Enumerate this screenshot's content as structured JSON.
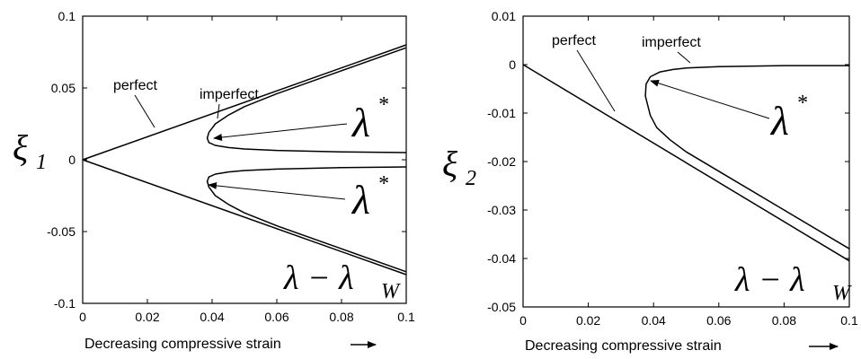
{
  "chart_data": [
    {
      "type": "line",
      "panel": "left",
      "xlabel": "Decreasing  compressive strain",
      "ylabel": "ξ",
      "ylabel_sub": "1",
      "xlim": [
        0,
        0.1
      ],
      "ylim": [
        -0.1,
        0.1
      ],
      "x_ticks": [
        "0",
        "0.02",
        "0.04",
        "0.06",
        "0.08",
        "0.1"
      ],
      "y_ticks": [
        "0.1",
        "0.05",
        "0",
        "-0.05",
        "-0.1"
      ],
      "series": [
        {
          "name": "perfect",
          "x": [
            0,
            0.1
          ],
          "y": [
            0,
            0.08
          ]
        },
        {
          "name": "perfect",
          "x": [
            0,
            0.1
          ],
          "y": [
            0,
            -0.08
          ]
        },
        {
          "name": "imperfect",
          "x": [
            0.1,
            0.08,
            0.06,
            0.05,
            0.045,
            0.041,
            0.039,
            0.0385,
            0.039,
            0.041,
            0.045,
            0.05,
            0.06,
            0.08,
            0.1
          ],
          "y": [
            0.078,
            0.062,
            0.046,
            0.037,
            0.031,
            0.025,
            0.019,
            0.015,
            0.012,
            0.01,
            0.0085,
            0.0075,
            0.0065,
            0.0055,
            0.005
          ]
        },
        {
          "name": "imperfect",
          "x": [
            0.1,
            0.08,
            0.06,
            0.05,
            0.045,
            0.041,
            0.039,
            0.0385,
            0.039,
            0.041,
            0.045,
            0.05,
            0.06,
            0.08,
            0.1
          ],
          "y": [
            -0.078,
            -0.062,
            -0.046,
            -0.037,
            -0.031,
            -0.025,
            -0.019,
            -0.015,
            -0.012,
            -0.01,
            -0.0085,
            -0.0075,
            -0.0065,
            -0.0055,
            -0.005
          ]
        }
      ],
      "annotations": [
        {
          "text": "perfect"
        },
        {
          "text": "imperfect"
        },
        {
          "text": "λ",
          "sup": "*",
          "arrow_to": [
            0.039,
            0.015
          ]
        },
        {
          "text": "λ",
          "sup": "*",
          "arrow_to": [
            0.039,
            -0.015
          ]
        },
        {
          "text": "λ − λ",
          "sub": "W"
        }
      ]
    },
    {
      "type": "line",
      "panel": "right",
      "xlabel": "Decreasing  compressive strain",
      "ylabel": "ξ",
      "ylabel_sub": "2",
      "xlim": [
        0,
        0.1
      ],
      "ylim": [
        -0.05,
        0.01
      ],
      "x_ticks": [
        "0",
        "0.02",
        "0.04",
        "0.06",
        "0.08",
        "0.1"
      ],
      "y_ticks": [
        "0.01",
        "0",
        "-0.01",
        "-0.02",
        "-0.03",
        "-0.04",
        "-0.05"
      ],
      "series": [
        {
          "name": "perfect",
          "x": [
            0,
            0.1
          ],
          "y": [
            0,
            -0.0405
          ]
        },
        {
          "name": "imperfect",
          "x": [
            0.1,
            0.08,
            0.06,
            0.05,
            0.045,
            0.041,
            0.039,
            0.0375,
            0.0377,
            0.039,
            0.042,
            0.046,
            0.05,
            0.06,
            0.08,
            0.1
          ],
          "y": [
            -0.038,
            -0.03,
            -0.022,
            -0.018,
            -0.0155,
            -0.013,
            -0.0105,
            -0.0065,
            -0.004,
            -0.0025,
            -0.0015,
            -0.001,
            -0.0007,
            -0.0004,
            -0.0002,
            -0.0002
          ]
        }
      ],
      "annotations": [
        {
          "text": "perfect"
        },
        {
          "text": "imperfect"
        },
        {
          "text": "λ",
          "sup": "*",
          "arrow_to": [
            0.038,
            -0.0045
          ]
        },
        {
          "text": "λ − λ",
          "sub": "W"
        }
      ]
    }
  ]
}
